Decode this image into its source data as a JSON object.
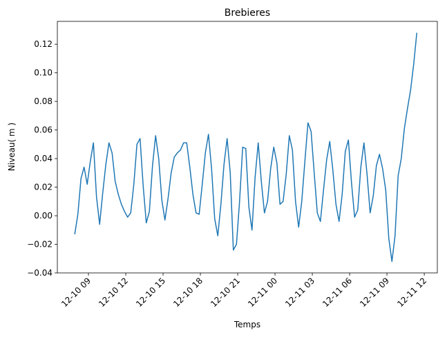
{
  "chart_data": {
    "type": "line",
    "title": "Brebieres",
    "xlabel": "Temps",
    "ylabel": "Niveau( m )",
    "x": [
      7.9,
      8.15,
      8.4,
      8.65,
      8.9,
      9.15,
      9.4,
      9.65,
      9.9,
      10.15,
      10.4,
      10.65,
      10.9,
      11.15,
      11.4,
      11.65,
      11.9,
      12.15,
      12.4,
      12.65,
      12.9,
      13.15,
      13.4,
      13.65,
      13.9,
      14.15,
      14.4,
      14.65,
      14.9,
      15.15,
      15.4,
      15.65,
      15.9,
      16.15,
      16.4,
      16.65,
      16.9,
      17.15,
      17.4,
      17.65,
      17.9,
      18.15,
      18.4,
      18.65,
      18.9,
      19.15,
      19.4,
      19.65,
      19.9,
      20.15,
      20.4,
      20.65,
      20.9,
      21.15,
      21.4,
      21.65,
      21.9,
      22.15,
      22.4,
      22.65,
      22.9,
      23.15,
      23.4,
      23.65,
      23.9,
      24.15,
      24.4,
      24.65,
      24.9,
      25.15,
      25.4,
      25.65,
      25.9,
      26.15,
      26.4,
      26.65,
      26.9,
      27.15,
      27.4,
      27.65,
      27.9,
      28.15,
      28.4,
      28.65,
      28.9,
      29.15,
      29.4,
      29.65,
      29.9,
      30.15,
      30.4,
      30.65,
      30.9,
      31.15,
      31.4,
      31.65,
      31.9,
      32.15,
      32.4,
      32.65,
      32.9,
      33.15,
      33.4,
      33.65,
      33.9,
      34.15,
      34.4,
      34.65,
      34.9,
      35.15,
      35.4
    ],
    "series": [
      {
        "name": "Niveau",
        "color": "#1f77b4",
        "values": [
          -0.013,
          0.001,
          0.026,
          0.034,
          0.022,
          0.038,
          0.051,
          0.013,
          -0.006,
          0.016,
          0.036,
          0.051,
          0.044,
          0.024,
          0.015,
          0.008,
          0.003,
          -0.001,
          0.002,
          0.022,
          0.05,
          0.054,
          0.021,
          -0.005,
          0.003,
          0.035,
          0.056,
          0.04,
          0.011,
          -0.003,
          0.012,
          0.03,
          0.041,
          0.044,
          0.046,
          0.051,
          0.051,
          0.034,
          0.015,
          0.002,
          0.001,
          0.022,
          0.044,
          0.057,
          0.033,
          -0.002,
          -0.014,
          0.008,
          0.036,
          0.054,
          0.03,
          -0.024,
          -0.02,
          0.01,
          0.048,
          0.047,
          0.006,
          -0.01,
          0.027,
          0.051,
          0.024,
          0.002,
          0.01,
          0.033,
          0.048,
          0.037,
          0.008,
          0.01,
          0.029,
          0.056,
          0.046,
          0.01,
          -0.008,
          0.01,
          0.038,
          0.065,
          0.059,
          0.03,
          0.002,
          -0.004,
          0.018,
          0.039,
          0.052,
          0.032,
          0.008,
          -0.004,
          0.015,
          0.045,
          0.053,
          0.023,
          -0.001,
          0.004,
          0.034,
          0.051,
          0.029,
          0.002,
          0.014,
          0.035,
          0.043,
          0.033,
          0.018,
          -0.016,
          -0.032,
          -0.014,
          0.028,
          0.04,
          0.061,
          0.075,
          0.088,
          0.106,
          0.128
        ]
      }
    ],
    "xlim": [
      6.5,
      37.05
    ],
    "xticks": [
      {
        "value": 9,
        "label": "12-10 09"
      },
      {
        "value": 12,
        "label": "12-10 12"
      },
      {
        "value": 15,
        "label": "12-10 15"
      },
      {
        "value": 18,
        "label": "12-10 18"
      },
      {
        "value": 21,
        "label": "12-10 21"
      },
      {
        "value": 24,
        "label": "12-11 00"
      },
      {
        "value": 27,
        "label": "12-11 03"
      },
      {
        "value": 30,
        "label": "12-11 06"
      },
      {
        "value": 33,
        "label": "12-11 09"
      },
      {
        "value": 36,
        "label": "12-11 12"
      }
    ],
    "ylim": [
      -0.04,
      0.136
    ],
    "yticks": [
      {
        "value": -0.04,
        "label": "−0.04"
      },
      {
        "value": -0.02,
        "label": "−0.02"
      },
      {
        "value": 0,
        "label": "0.00"
      },
      0.02,
      0.04,
      0.06,
      0.08,
      {
        "value": 0.1,
        "label": "0.10"
      },
      0.12
    ],
    "grid": false
  }
}
